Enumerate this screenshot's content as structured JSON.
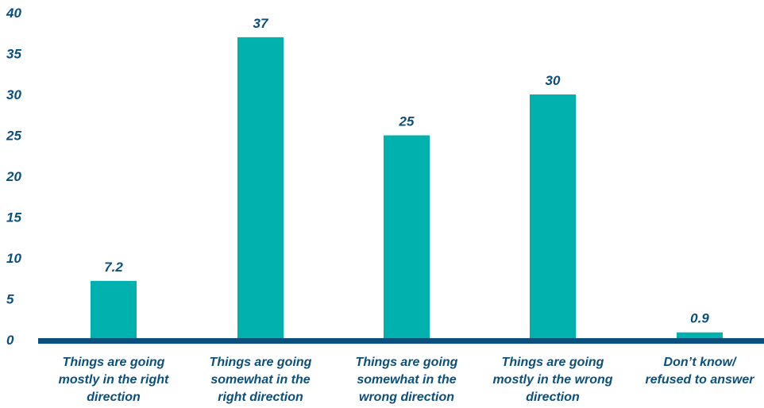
{
  "chart_data": {
    "type": "bar",
    "categories": [
      [
        "Things are going",
        "mostly in the right",
        "direction"
      ],
      [
        "Things are going",
        "somewhat in the",
        "right direction"
      ],
      [
        "Things are going",
        "somewhat in the",
        "wrong direction"
      ],
      [
        "Things are going",
        "mostly in the wrong",
        "direction"
      ],
      [
        "Don’t know/",
        "refused to answer"
      ]
    ],
    "values": [
      7.2,
      37,
      25,
      30,
      0.9
    ],
    "data_labels": [
      "7.2",
      "37",
      "25",
      "30",
      "0.9"
    ],
    "yticks": [
      "0",
      "5",
      "10",
      "15",
      "20",
      "25",
      "30",
      "35",
      "40"
    ],
    "ylim": [
      0,
      40
    ],
    "title": "",
    "xlabel": "",
    "ylabel": "",
    "grid": false,
    "legend": "none"
  },
  "colors": {
    "bar": "#00B1AE",
    "axis": "#0B4F7C",
    "text": "#0B4F7C"
  }
}
